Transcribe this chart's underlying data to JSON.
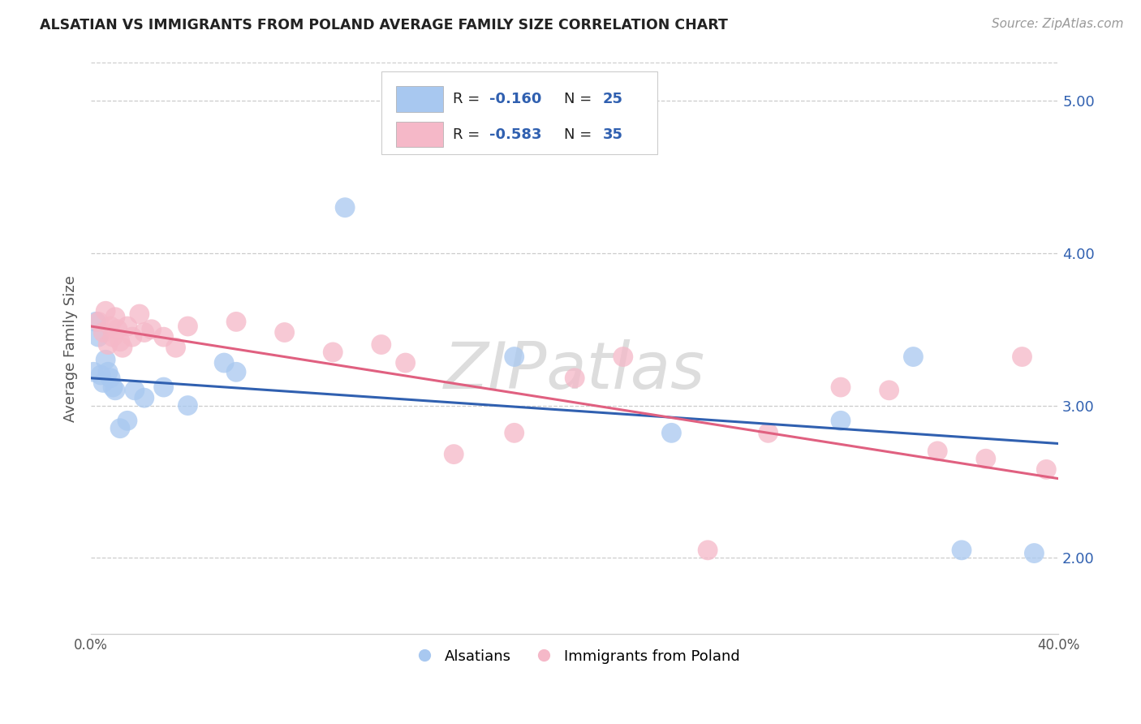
{
  "title": "ALSATIAN VS IMMIGRANTS FROM POLAND AVERAGE FAMILY SIZE CORRELATION CHART",
  "source": "Source: ZipAtlas.com",
  "ylabel": "Average Family Size",
  "xlim": [
    0.0,
    0.4
  ],
  "ylim": [
    1.5,
    5.25
  ],
  "yticks": [
    2.0,
    3.0,
    4.0,
    5.0
  ],
  "xticks": [
    0.0,
    0.05,
    0.1,
    0.15,
    0.2,
    0.25,
    0.3,
    0.35,
    0.4
  ],
  "legend_r_blue": "-0.160",
  "legend_n_blue": "25",
  "legend_r_pink": "-0.583",
  "legend_n_pink": "35",
  "legend_label_blue": "Alsatians",
  "legend_label_pink": "Immigrants from Poland",
  "blue_color": "#a8c8f0",
  "pink_color": "#f5b8c8",
  "blue_line_color": "#3060b0",
  "pink_line_color": "#e06080",
  "watermark": "ZIPatlas",
  "blue_scatter_x": [
    0.001,
    0.002,
    0.003,
    0.004,
    0.005,
    0.006,
    0.007,
    0.008,
    0.009,
    0.01,
    0.012,
    0.015,
    0.018,
    0.022,
    0.03,
    0.04,
    0.055,
    0.06,
    0.105,
    0.175,
    0.24,
    0.31,
    0.34,
    0.36,
    0.39
  ],
  "blue_scatter_y": [
    3.22,
    3.55,
    3.45,
    3.2,
    3.15,
    3.3,
    3.22,
    3.18,
    3.12,
    3.1,
    2.85,
    2.9,
    3.1,
    3.05,
    3.12,
    3.0,
    3.28,
    3.22,
    4.3,
    3.32,
    2.82,
    2.9,
    3.32,
    2.05,
    2.03
  ],
  "pink_scatter_x": [
    0.003,
    0.005,
    0.006,
    0.007,
    0.008,
    0.009,
    0.01,
    0.011,
    0.012,
    0.013,
    0.015,
    0.017,
    0.02,
    0.022,
    0.025,
    0.03,
    0.035,
    0.04,
    0.06,
    0.08,
    0.1,
    0.12,
    0.13,
    0.15,
    0.175,
    0.2,
    0.22,
    0.255,
    0.28,
    0.31,
    0.33,
    0.35,
    0.37,
    0.385,
    0.395
  ],
  "pink_scatter_y": [
    3.55,
    3.48,
    3.62,
    3.4,
    3.52,
    3.45,
    3.58,
    3.5,
    3.42,
    3.38,
    3.52,
    3.45,
    3.6,
    3.48,
    3.5,
    3.45,
    3.38,
    3.52,
    3.55,
    3.48,
    3.35,
    3.4,
    3.28,
    2.68,
    2.82,
    3.18,
    3.32,
    2.05,
    2.82,
    3.12,
    3.1,
    2.7,
    2.65,
    3.32,
    2.58
  ],
  "blue_line_x": [
    0.0,
    0.4
  ],
  "blue_line_y": [
    3.18,
    2.75
  ],
  "pink_line_x": [
    0.0,
    0.4
  ],
  "pink_line_y": [
    3.52,
    2.52
  ]
}
